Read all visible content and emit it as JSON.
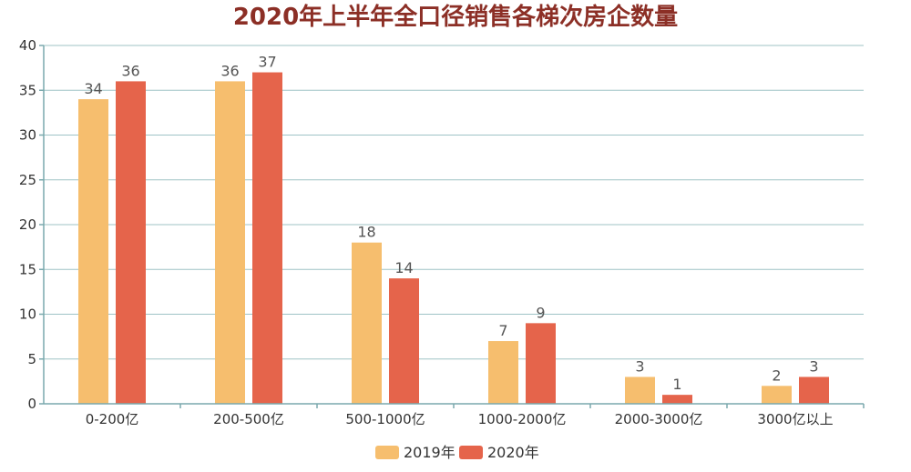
{
  "chart_data": {
    "type": "bar",
    "title": "2020年上半年全口径销售各梯次房企数量",
    "categories": [
      "0-200亿",
      "200-500亿",
      "500-1000亿",
      "1000-2000亿",
      "2000-3000亿",
      "3000亿以上"
    ],
    "series": [
      {
        "name": "2019年",
        "color": "#f6be6e",
        "values": [
          34,
          36,
          18,
          7,
          3,
          2
        ]
      },
      {
        "name": "2020年",
        "color": "#e5644b",
        "values": [
          36,
          37,
          14,
          9,
          1,
          3
        ]
      }
    ],
    "ylim": [
      0,
      40
    ],
    "yticks": [
      0,
      5,
      10,
      15,
      20,
      25,
      30,
      35,
      40
    ],
    "grid": true,
    "legend": "bottom-center"
  }
}
